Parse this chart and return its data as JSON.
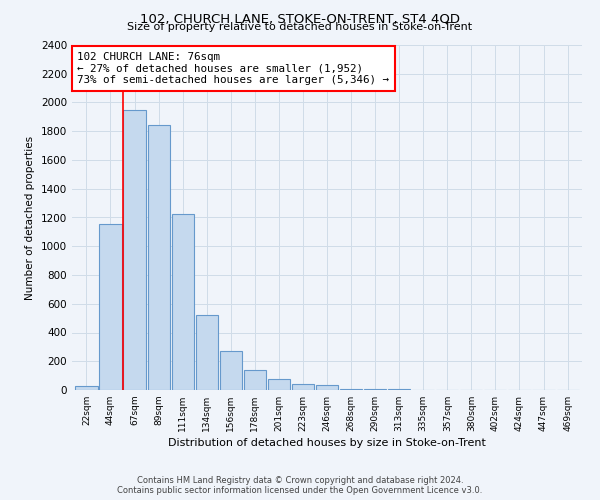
{
  "title": "102, CHURCH LANE, STOKE-ON-TRENT, ST4 4QD",
  "subtitle": "Size of property relative to detached houses in Stoke-on-Trent",
  "xlabel": "Distribution of detached houses by size in Stoke-on-Trent",
  "ylabel": "Number of detached properties",
  "bar_labels": [
    "22sqm",
    "44sqm",
    "67sqm",
    "89sqm",
    "111sqm",
    "134sqm",
    "156sqm",
    "178sqm",
    "201sqm",
    "223sqm",
    "246sqm",
    "268sqm",
    "290sqm",
    "313sqm",
    "335sqm",
    "357sqm",
    "380sqm",
    "402sqm",
    "424sqm",
    "447sqm",
    "469sqm"
  ],
  "bar_values": [
    25,
    1155,
    1950,
    1840,
    1225,
    520,
    270,
    140,
    75,
    45,
    35,
    10,
    10,
    5,
    3,
    2,
    1,
    1,
    0,
    0,
    0
  ],
  "bar_color": "#c5d9ee",
  "bar_edge_color": "#6699cc",
  "red_line_x": 1.5,
  "annotation_title": "102 CHURCH LANE: 76sqm",
  "annotation_line1": "← 27% of detached houses are smaller (1,952)",
  "annotation_line2": "73% of semi-detached houses are larger (5,346) →",
  "ylim": [
    0,
    2400
  ],
  "yticks": [
    0,
    200,
    400,
    600,
    800,
    1000,
    1200,
    1400,
    1600,
    1800,
    2000,
    2200,
    2400
  ],
  "footer_line1": "Contains HM Land Registry data © Crown copyright and database right 2024.",
  "footer_line2": "Contains public sector information licensed under the Open Government Licence v3.0.",
  "bg_color": "#f0f4fa",
  "grid_color": "#d0dce8"
}
